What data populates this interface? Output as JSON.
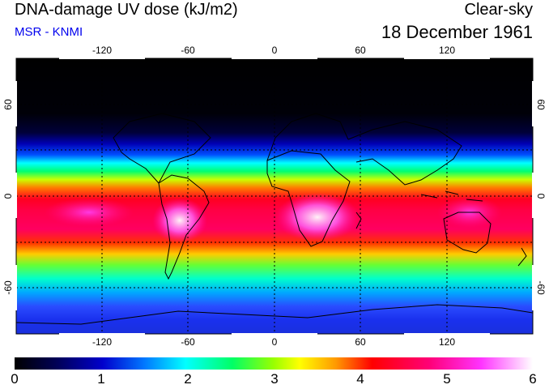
{
  "header": {
    "title": "DNA-damage UV dose (kJ/m2)",
    "subtitle": "MSR - KNMI",
    "sky_condition": "Clear-sky",
    "date": "18 December 1961"
  },
  "map": {
    "longitude_ticks": [
      "-120",
      "-60",
      "0",
      "60",
      "120"
    ],
    "latitude_ticks": [
      "60",
      "0",
      "-60"
    ],
    "lon_range": [
      -180,
      180
    ],
    "lat_range": [
      -90,
      90
    ]
  },
  "colorbar": {
    "labels": [
      "0",
      "1",
      "2",
      "3",
      "4",
      "5",
      "6"
    ],
    "range": [
      0,
      6
    ],
    "unit": "kJ/m2",
    "colors": [
      "#000000",
      "#0000aa",
      "#0044ff",
      "#00ffff",
      "#00ff44",
      "#aaff00",
      "#ffff00",
      "#ff9900",
      "#ff0000",
      "#ff0088",
      "#ff44ff",
      "#ffffff"
    ]
  }
}
